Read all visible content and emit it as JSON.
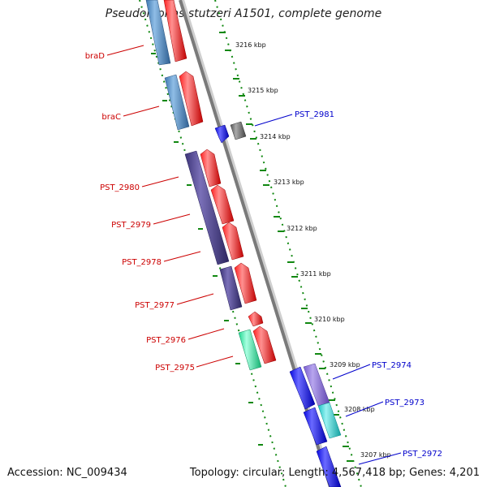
{
  "title": "Pseudomonas stutzeri A1501, complete genome",
  "footer": {
    "accession": "Accession: NC_009434",
    "topology": "Topology: circular; Length: 4,567,418 bp; Genes: 4,201"
  },
  "colors": {
    "left_label": "#cc0000",
    "right_label": "#0000cc",
    "orf_red": "#ff0000",
    "blue_steel": "#4a86c0",
    "indigo": "#4a3f8c",
    "teal": "#33e6a6",
    "blue": "#1010ee",
    "gray": "#6f6f6f",
    "cyan": "#2fd0d0",
    "lavender": "#8a70d8",
    "tick_green": "#118811",
    "backbone": "#7a7a7a"
  },
  "scale_labels": [
    "3216 kbp",
    "3215 kbp",
    "3214 kbp",
    "3213 kbp",
    "3212 kbp",
    "3211 kbp",
    "3210 kbp",
    "3209 kbp",
    "3208 kbp",
    "3207 kbp"
  ],
  "left_genes": [
    {
      "label": "braD",
      "name": "gene-label-brad"
    },
    {
      "label": "braC",
      "name": "gene-label-brac"
    },
    {
      "label": "PST_2980",
      "name": "gene-label-pst-2980"
    },
    {
      "label": "PST_2979",
      "name": "gene-label-pst-2979"
    },
    {
      "label": "PST_2978",
      "name": "gene-label-pst-2978"
    },
    {
      "label": "PST_2977",
      "name": "gene-label-pst-2977"
    },
    {
      "label": "PST_2976",
      "name": "gene-label-pst-2976"
    },
    {
      "label": "PST_2975",
      "name": "gene-label-pst-2975"
    }
  ],
  "right_genes": [
    {
      "label": "PST_2981",
      "name": "gene-label-pst-2981"
    },
    {
      "label": "PST_2974",
      "name": "gene-label-pst-2974"
    },
    {
      "label": "PST_2973",
      "name": "gene-label-pst-2973"
    },
    {
      "label": "PST_2972",
      "name": "gene-label-pst-2972"
    }
  ]
}
